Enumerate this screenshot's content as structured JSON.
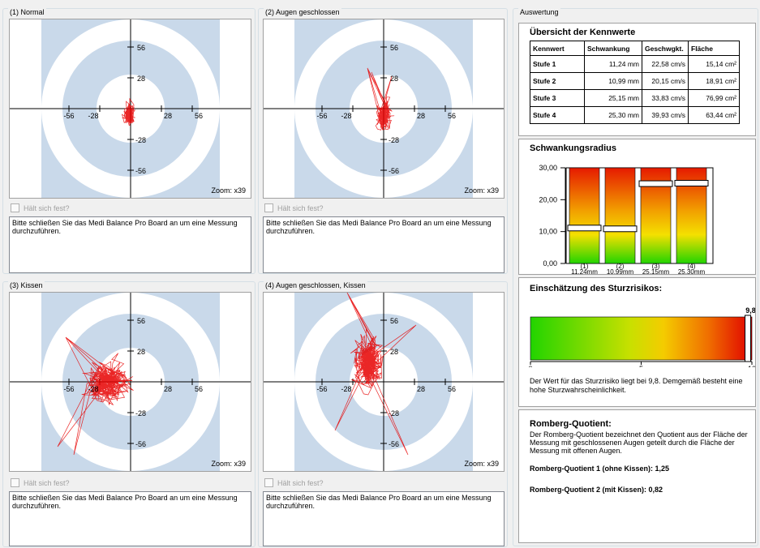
{
  "quadrants": [
    {
      "title": "(1) Normal",
      "zoom": "Zoom: x39",
      "checkbox_label": "Hält sich fest?",
      "message": "Bitte schließen Sie das Medi Balance Pro Board an um eine Messung durchzuführen."
    },
    {
      "title": "(2) Augen geschlossen",
      "zoom": "Zoom: x39",
      "checkbox_label": "Hält sich fest?",
      "message": "Bitte schließen Sie das Medi Balance Pro Board an um eine Messung durchzuführen."
    },
    {
      "title": "(3) Kissen",
      "zoom": "Zoom: x39",
      "checkbox_label": "Hält sich fest?",
      "message": "Bitte schließen Sie das Medi Balance Pro Board an um eine Messung durchzuführen."
    },
    {
      "title": "(4) Augen geschlossen, Kissen",
      "zoom": "Zoom: x39",
      "checkbox_label": "Hält sich fest?",
      "message": "Bitte schließen Sie das Medi Balance Pro Board an um eine Messung durchzuführen."
    }
  ],
  "axis_ticks": {
    "pos1": "28",
    "pos2": "56",
    "neg1": "-28",
    "neg2": "-56"
  },
  "auswertung": {
    "title": "Auswertung",
    "kennwerte": {
      "title": "Übersicht der Kennwerte",
      "headers": [
        "Kennwert",
        "Schwankung",
        "Geschwgkt.",
        "Fläche"
      ],
      "rows": [
        [
          "Stufe 1",
          "11,24 mm",
          "22,58 cm/s",
          "15,14 cm²"
        ],
        [
          "Stufe 2",
          "10,99 mm",
          "20,15 cm/s",
          "18,91 cm²"
        ],
        [
          "Stufe 3",
          "25,15 mm",
          "33,83 cm/s",
          "76,99 cm²"
        ],
        [
          "Stufe 4",
          "25,30 mm",
          "39,93 cm/s",
          "63,44 cm²"
        ]
      ]
    },
    "radius": {
      "title": "Schwankungsradius",
      "y_ticks": [
        "30,00",
        "20,00",
        "10,00",
        "0,00"
      ],
      "ymax": 30,
      "bars": [
        {
          "label": "(1)",
          "value_label": "11,24mm",
          "value": 11.24
        },
        {
          "label": "(2)",
          "value_label": "10,99mm",
          "value": 10.99
        },
        {
          "label": "(3)",
          "value_label": "25,15mm",
          "value": 25.15
        },
        {
          "label": "(4)",
          "value_label": "25,30mm",
          "value": 25.3
        }
      ]
    },
    "sturz": {
      "title": "Einschätzung des Sturzrisikos:",
      "value_label": "9,8",
      "value": 9.8,
      "max": 10,
      "scale": [
        "0",
        "5",
        "10"
      ],
      "text": "Der Wert für das Sturzrisiko liegt bei 9,8. Demgemäß besteht eine hohe Sturzwahrscheinlichkeit."
    },
    "romberg": {
      "title": "Romberg-Quotient:",
      "text": "Der Romberg-Quotient bezeichnet den Quotient aus der Fläche der Messung mit geschlossenen Augen geteilt durch die Fläche der Messung mit offenen Augen.",
      "q1": "Romberg-Quotient 1 (ohne Kissen): 1,25",
      "q2": "Romberg-Quotient 2 (mit Kissen): 0,82"
    }
  },
  "colors": {
    "trace": "#e60000",
    "ring": "#c9d9ea",
    "ring_inner": "#ffffff",
    "bar_top": "#e82000",
    "bar_mid": "#f5d300",
    "bar_bottom": "#27d800"
  }
}
